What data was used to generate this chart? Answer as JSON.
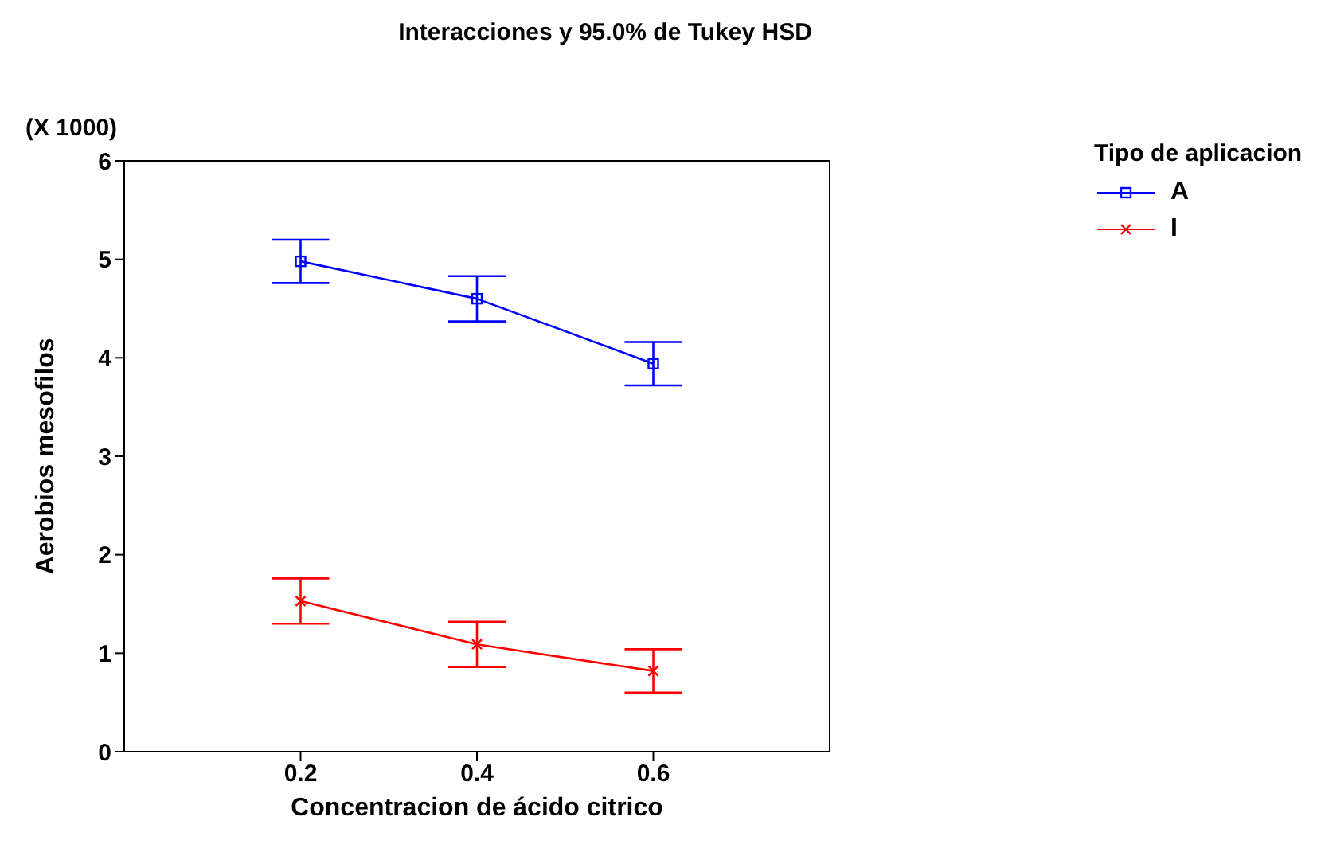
{
  "chart_data": {
    "type": "line",
    "title": "Interacciones y 95.0% de Tukey HSD",
    "xlabel": "Concentracion de ácido citrico",
    "ylabel": "Aerobios mesofilos",
    "annotations": [
      "(X 1000)"
    ],
    "x": [
      0.2,
      0.4,
      0.6
    ],
    "series": [
      {
        "name": "A",
        "color": "#0000ff",
        "marker": "square",
        "values": [
          4.98,
          4.6,
          3.94
        ],
        "errors": [
          0.22,
          0.23,
          0.22
        ]
      },
      {
        "name": "I",
        "color": "#ff0000",
        "marker": "cross",
        "values": [
          1.53,
          1.09,
          0.82
        ],
        "errors": [
          0.23,
          0.23,
          0.22
        ]
      }
    ],
    "xlim": [
      0,
      0.8
    ],
    "xticks": [
      0.2,
      0.4,
      0.6
    ],
    "ylim": [
      0,
      6
    ],
    "yticks": [
      0,
      1,
      2,
      3,
      4,
      5,
      6
    ],
    "legend_title": "Tipo de aplicacion",
    "legend": "top right"
  }
}
